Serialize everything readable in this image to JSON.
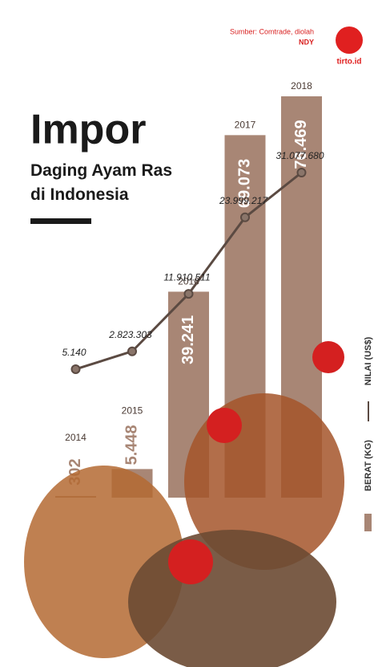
{
  "source": "Sumber: Comtrade, diolah",
  "author": "NDY",
  "brand": "tirto.id",
  "chart_data": {
    "type": "bar-line",
    "title": "Impor",
    "subtitle": "Daging Ayam Ras di Indonesia",
    "categories": [
      "2014",
      "2015",
      "2016",
      "2017",
      "2018"
    ],
    "series": [
      {
        "name": "BERAT (KG)",
        "color": "#a88675",
        "values": [
          302,
          5448,
          39241,
          69073,
          76469
        ],
        "value_labels": [
          "302",
          "5.448",
          "39.241",
          "69.073",
          "76.469"
        ]
      },
      {
        "name": "NILAI (US$)",
        "color": "#5b4a42",
        "values": [
          5140,
          2823303,
          11910511,
          23999217,
          31077680
        ],
        "value_labels": [
          "5.140",
          "2.823.303",
          "11.910.511",
          "23.999.217",
          "31.077.680"
        ]
      }
    ]
  }
}
